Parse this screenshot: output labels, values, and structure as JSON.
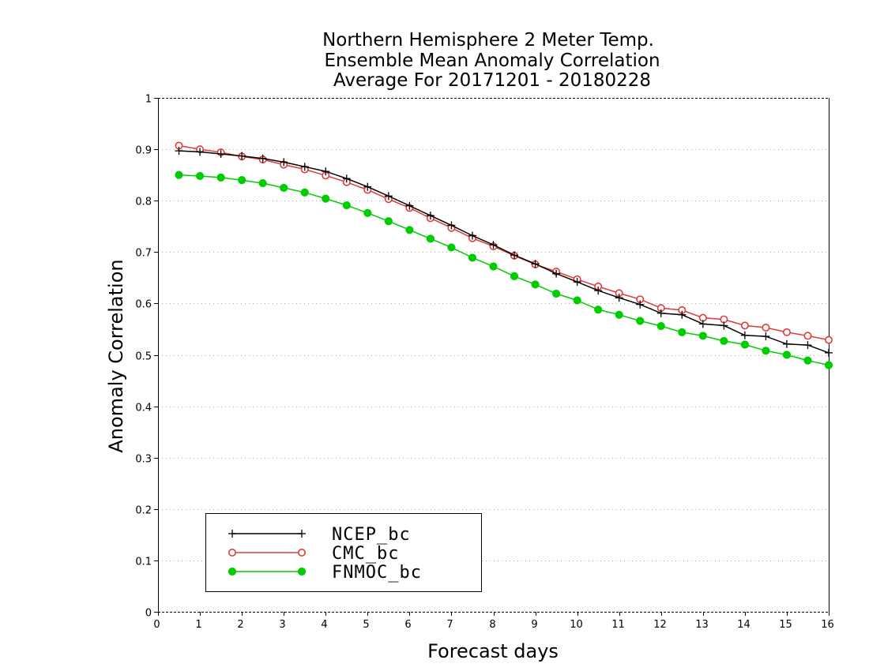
{
  "chart_data": {
    "type": "line",
    "title": [
      "Northern Hemisphere 2 Meter Temp.",
      "Ensemble Mean Anomaly Correlation",
      "Average For 20171201 - 20180228"
    ],
    "xlabel": "Forecast days",
    "ylabel": "Anomaly Correlation",
    "xlim": [
      0,
      16
    ],
    "ylim": [
      0,
      1
    ],
    "x_ticks": [
      "0",
      "1",
      "2",
      "3",
      "4",
      "5",
      "6",
      "7",
      "8",
      "9",
      "10",
      "11",
      "12",
      "13",
      "14",
      "15",
      "16"
    ],
    "y_ticks": [
      "0",
      "0.1",
      "0.2",
      "0.3",
      "0.4",
      "0.5",
      "0.6",
      "0.7",
      "0.8",
      "0.9",
      "1"
    ],
    "grid": "horizontal dotted",
    "legend_position": "bottom-left",
    "x": [
      0.5,
      1,
      1.5,
      2,
      2.5,
      3,
      3.5,
      4,
      4.5,
      5,
      5.5,
      6,
      6.5,
      7,
      7.5,
      8,
      8.5,
      9,
      9.5,
      10,
      10.5,
      11,
      11.5,
      12,
      12.5,
      13,
      13.5,
      14,
      14.5,
      15,
      15.5,
      16
    ],
    "series": [
      {
        "name": "NCEP_bc",
        "color": "#000000",
        "marker": "plus",
        "values": [
          0.897,
          0.895,
          0.891,
          0.887,
          0.882,
          0.875,
          0.866,
          0.857,
          0.843,
          0.827,
          0.809,
          0.79,
          0.771,
          0.752,
          0.732,
          0.714,
          0.694,
          0.677,
          0.658,
          0.642,
          0.625,
          0.611,
          0.598,
          0.581,
          0.578,
          0.56,
          0.557,
          0.538,
          0.536,
          0.521,
          0.519,
          0.504
        ]
      },
      {
        "name": "CMC_bc",
        "color": "#e03a3a",
        "marker": "open-circle",
        "values": [
          0.907,
          0.9,
          0.894,
          0.886,
          0.88,
          0.87,
          0.861,
          0.849,
          0.836,
          0.821,
          0.803,
          0.786,
          0.766,
          0.747,
          0.727,
          0.711,
          0.693,
          0.676,
          0.662,
          0.647,
          0.633,
          0.62,
          0.608,
          0.591,
          0.587,
          0.572,
          0.569,
          0.557,
          0.553,
          0.544,
          0.537,
          0.529
        ]
      },
      {
        "name": "FNMOC_bc",
        "color": "#00cc00",
        "marker": "filled-circle",
        "values": [
          0.85,
          0.848,
          0.845,
          0.84,
          0.834,
          0.825,
          0.816,
          0.804,
          0.791,
          0.776,
          0.76,
          0.743,
          0.726,
          0.709,
          0.689,
          0.672,
          0.653,
          0.637,
          0.619,
          0.606,
          0.588,
          0.578,
          0.566,
          0.556,
          0.544,
          0.537,
          0.527,
          0.52,
          0.508,
          0.5,
          0.489,
          0.48
        ]
      }
    ]
  }
}
